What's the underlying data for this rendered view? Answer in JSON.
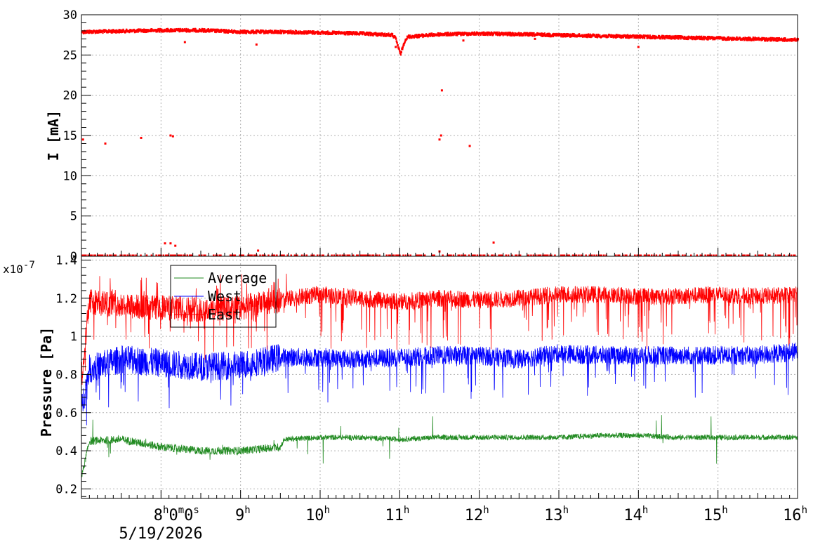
{
  "chart_data": [
    {
      "type": "scatter",
      "name": "current",
      "ylabel": "I [mA]",
      "ylim": [
        0,
        30
      ],
      "yticks": [
        "0",
        "5",
        "10",
        "15",
        "20",
        "25",
        "30"
      ],
      "xlim_hours": [
        7.0,
        16.0
      ],
      "grid": true,
      "series": [
        {
          "color": "#ff0000",
          "x": [
            7.0,
            7.5,
            8.0,
            8.5,
            9.0,
            9.5,
            10.0,
            10.5,
            10.9,
            11.0,
            11.1,
            11.5,
            12.0,
            12.5,
            13.0,
            13.5,
            14.0,
            14.5,
            15.0,
            15.5,
            16.0
          ],
          "y": [
            28.0,
            28.1,
            28.2,
            28.2,
            28.0,
            28.0,
            27.9,
            27.8,
            27.6,
            26.5,
            27.4,
            27.7,
            27.8,
            27.7,
            27.6,
            27.5,
            27.4,
            27.3,
            27.2,
            27.1,
            27.0
          ]
        }
      ],
      "outliers": {
        "x": [
          7.02,
          7.3,
          7.75,
          8.12,
          8.15,
          9.2,
          10.95,
          11.5,
          11.52,
          11.53,
          11.88,
          12.18,
          8.05,
          8.12,
          8.18,
          9.22,
          11.5,
          14.0,
          8.3,
          11.8,
          12.7
        ],
        "y": [
          14.5,
          14.0,
          14.7,
          15.0,
          14.9,
          26.3,
          26.0,
          14.5,
          15.0,
          20.6,
          13.7,
          1.7,
          1.6,
          1.6,
          1.3,
          0.7,
          0.6,
          26.0,
          26.6,
          26.8,
          27.0
        ]
      }
    },
    {
      "type": "line",
      "name": "pressure",
      "ylabel": "Pressure [Pa]",
      "multiplier": "x10",
      "multiplier_exp": "-7",
      "ylim": [
        0.15,
        1.42
      ],
      "yticks": [
        "0.2",
        "0.4",
        "0.6",
        "0.8",
        "1",
        "1.2",
        "1.4"
      ],
      "xlim_hours": [
        7.0,
        16.0
      ],
      "grid": true,
      "legend": {
        "placement": "top-left",
        "entries": [
          "Average",
          "West",
          "East"
        ]
      },
      "series": [
        {
          "name": "Average",
          "color": "#228b22",
          "x": [
            7.0,
            7.1,
            7.5,
            8.0,
            8.5,
            9.0,
            9.5,
            9.55,
            10.0,
            10.5,
            11.0,
            11.5,
            12.0,
            12.5,
            13.0,
            13.5,
            14.0,
            14.5,
            15.0,
            15.5,
            16.0
          ],
          "y": [
            0.26,
            0.45,
            0.46,
            0.42,
            0.4,
            0.4,
            0.42,
            0.46,
            0.47,
            0.47,
            0.46,
            0.47,
            0.47,
            0.47,
            0.47,
            0.48,
            0.48,
            0.47,
            0.47,
            0.47,
            0.47
          ]
        },
        {
          "name": "West",
          "color": "#0000ff",
          "x": [
            7.0,
            7.1,
            7.5,
            8.0,
            8.5,
            9.0,
            9.5,
            10.0,
            10.5,
            11.0,
            11.5,
            12.0,
            12.5,
            13.0,
            13.5,
            14.0,
            14.5,
            15.0,
            15.5,
            16.0
          ],
          "y": [
            0.62,
            0.83,
            0.88,
            0.86,
            0.84,
            0.85,
            0.89,
            0.89,
            0.88,
            0.89,
            0.9,
            0.9,
            0.88,
            0.91,
            0.9,
            0.9,
            0.9,
            0.9,
            0.9,
            0.92
          ]
        },
        {
          "name": "East",
          "color": "#ff0000",
          "x": [
            7.0,
            7.1,
            7.5,
            8.0,
            8.5,
            9.0,
            9.5,
            10.0,
            10.5,
            11.0,
            11.5,
            12.0,
            12.5,
            13.0,
            13.5,
            14.0,
            14.5,
            15.0,
            15.5,
            16.0
          ],
          "y": [
            0.78,
            1.18,
            1.16,
            1.15,
            1.14,
            1.15,
            1.19,
            1.22,
            1.2,
            1.18,
            1.2,
            1.19,
            1.2,
            1.22,
            1.22,
            1.21,
            1.21,
            1.22,
            1.21,
            1.22
          ]
        }
      ]
    }
  ],
  "time_axis": {
    "ticks": [
      {
        "hour": 8,
        "main": "8",
        "sup1": "h",
        "mid": "0",
        "sup2": "m",
        "mid2": "0",
        "sup3": "s"
      },
      {
        "hour": 9,
        "main": "9",
        "sup1": "h"
      },
      {
        "hour": 10,
        "main": "10",
        "sup1": "h"
      },
      {
        "hour": 11,
        "main": "11",
        "sup1": "h"
      },
      {
        "hour": 12,
        "main": "12",
        "sup1": "h"
      },
      {
        "hour": 13,
        "main": "13",
        "sup1": "h"
      },
      {
        "hour": 14,
        "main": "14",
        "sup1": "h"
      },
      {
        "hour": 15,
        "main": "15",
        "sup1": "h"
      },
      {
        "hour": 16,
        "main": "16",
        "sup1": "h"
      }
    ],
    "date": "5/19/2026"
  }
}
